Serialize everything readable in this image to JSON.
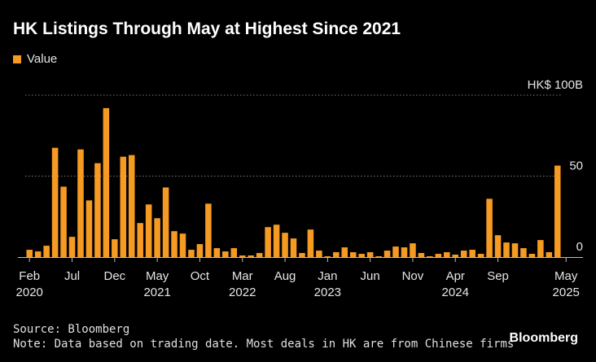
{
  "title": "HK Listings Through May at Highest Since 2021",
  "legend": {
    "label": "Value",
    "color": "#f59a23"
  },
  "footer": {
    "source": "Source: Bloomberg",
    "note": "Note: Data based on trading date. Most deals in HK are from Chinese firms"
  },
  "brand": "Bloomberg",
  "chart_data": {
    "type": "bar",
    "unit_label": "HK$ 100B",
    "ylim": [
      0,
      100
    ],
    "yticks": [
      {
        "value": 100,
        "label": "HK$ 100B"
      },
      {
        "value": 50,
        "label": "50"
      },
      {
        "value": 0,
        "label": "0"
      }
    ],
    "grid": true,
    "legend_placement": "top-left",
    "bar_color": "#f59a23",
    "x_tick_labels": [
      {
        "index": 0,
        "month": "Feb",
        "year": "2020"
      },
      {
        "index": 5,
        "month": "Jul",
        "year": ""
      },
      {
        "index": 10,
        "month": "Dec",
        "year": ""
      },
      {
        "index": 15,
        "month": "May",
        "year": "2021"
      },
      {
        "index": 20,
        "month": "Oct",
        "year": ""
      },
      {
        "index": 25,
        "month": "Mar",
        "year": "2022"
      },
      {
        "index": 30,
        "month": "Aug",
        "year": ""
      },
      {
        "index": 35,
        "month": "Jan",
        "year": "2023"
      },
      {
        "index": 40,
        "month": "Jun",
        "year": ""
      },
      {
        "index": 45,
        "month": "Nov",
        "year": ""
      },
      {
        "index": 50,
        "month": "Apr",
        "year": "2024"
      },
      {
        "index": 55,
        "month": "Sep",
        "year": ""
      },
      {
        "index": 63,
        "month": "May",
        "year": "2025"
      }
    ],
    "series": [
      {
        "values": [
          4.5,
          3.5,
          7,
          67.5,
          43.5,
          12.5,
          66.5,
          35,
          58,
          92,
          11,
          62,
          63,
          21,
          32.5,
          24,
          43,
          16,
          14.5,
          4.5,
          8,
          33,
          5.5,
          3.5,
          5.5,
          1,
          1,
          2.5,
          18.5,
          20,
          15,
          11.5,
          2.5,
          17,
          4,
          0.5,
          3,
          6,
          3,
          2,
          3,
          0.5,
          4,
          6.5,
          6,
          8.5,
          2.5,
          0.5,
          2,
          3,
          1.5,
          4,
          4.5,
          2,
          36,
          13.5,
          9,
          8.5,
          5.5,
          2,
          10.5,
          3,
          56.5
        ]
      }
    ]
  }
}
